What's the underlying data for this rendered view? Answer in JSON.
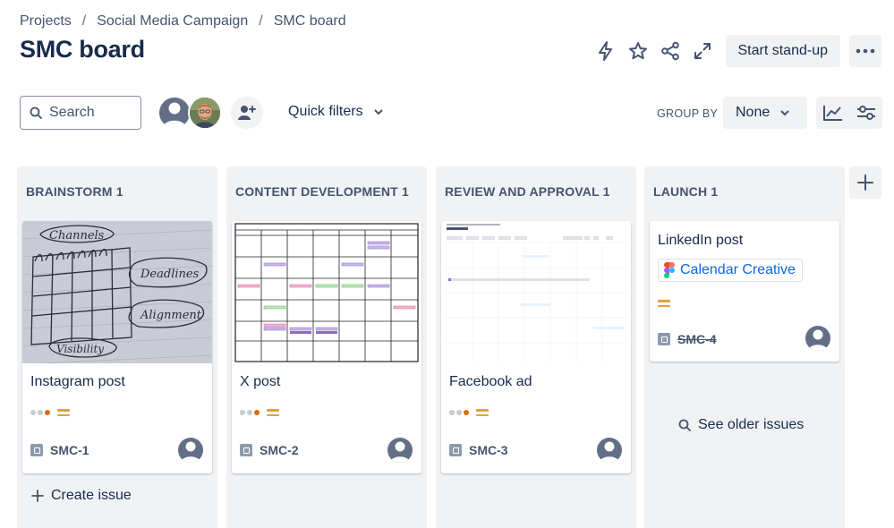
{
  "breadcrumb": {
    "items": [
      "Projects",
      "Social Media Campaign",
      "SMC board"
    ],
    "separator": "/"
  },
  "page_title": "SMC board",
  "header": {
    "standup_label": "Start stand-up"
  },
  "toolbar": {
    "search_placeholder": "Search",
    "quick_filters_label": "Quick filters",
    "group_by_label": "GROUP BY",
    "group_by_value": "None"
  },
  "columns": [
    {
      "title": "BRAINSTORM 1",
      "card": {
        "title": "Instagram post",
        "key": "SMC-1",
        "cover": "handwritten-sketch-cover"
      },
      "footer": {
        "create_label": "Create issue"
      }
    },
    {
      "title": "CONTENT DEVELOPMENT 1",
      "card": {
        "title": "X post",
        "key": "SMC-2",
        "cover": "calendar-grid-cover"
      }
    },
    {
      "title": "REVIEW AND APPROVAL 1",
      "card": {
        "title": "Facebook ad",
        "key": "SMC-3",
        "cover": "calendar-screenshot-cover"
      }
    },
    {
      "title": "LAUNCH 1",
      "card": {
        "title": "LinkedIn post",
        "key": "SMC-4",
        "linked_item": "Calendar Creative",
        "done": true
      },
      "footer": {
        "see_older_label": "See older issues"
      }
    }
  ],
  "colors": {
    "accent": "#0c66e4",
    "column_bg": "#f1f2f4",
    "priority": "#e2a03f",
    "status_dot": "#e06c00"
  },
  "icons": [
    "search-icon",
    "lightning-icon",
    "star-icon",
    "share-icon",
    "expand-icon",
    "more-icon",
    "add-person-icon",
    "chevron-down-icon",
    "insights-icon",
    "settings-icon",
    "plus-icon",
    "task-icon",
    "figma-icon"
  ]
}
